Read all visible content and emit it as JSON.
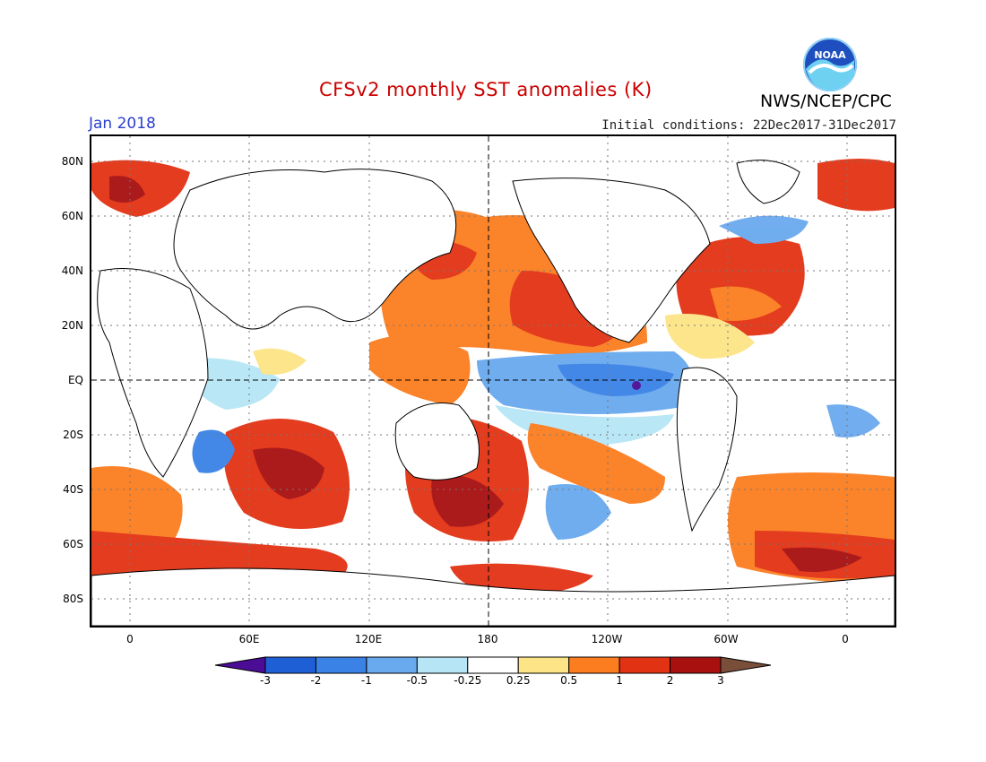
{
  "header": {
    "title": "CFSv2 monthly SST anomalies (K)",
    "org": "NWS/NCEP/CPC",
    "month": "Jan 2018",
    "initial_conditions": "Initial conditions: 22Dec2017-31Dec2017",
    "logo_text": "NOAA"
  },
  "axes": {
    "lat_ticks": [
      "80N",
      "60N",
      "40N",
      "20N",
      "EQ",
      "20S",
      "40S",
      "60S",
      "80S"
    ],
    "lon_ticks": [
      "0",
      "60E",
      "120E",
      "180",
      "120W",
      "60W",
      "0"
    ]
  },
  "colorbar": {
    "labels": [
      "-3",
      "-2",
      "-1",
      "-0.5",
      "-0.25",
      "0.25",
      "0.5",
      "1",
      "2",
      "3"
    ],
    "colors": [
      "#4b0c96",
      "#1f5fd6",
      "#3a82e6",
      "#69a9ee",
      "#b6e6f5",
      "#ffffff",
      "#fde486",
      "#fb7d1f",
      "#e23214",
      "#a80f0f",
      "#7a4f3a"
    ]
  }
}
